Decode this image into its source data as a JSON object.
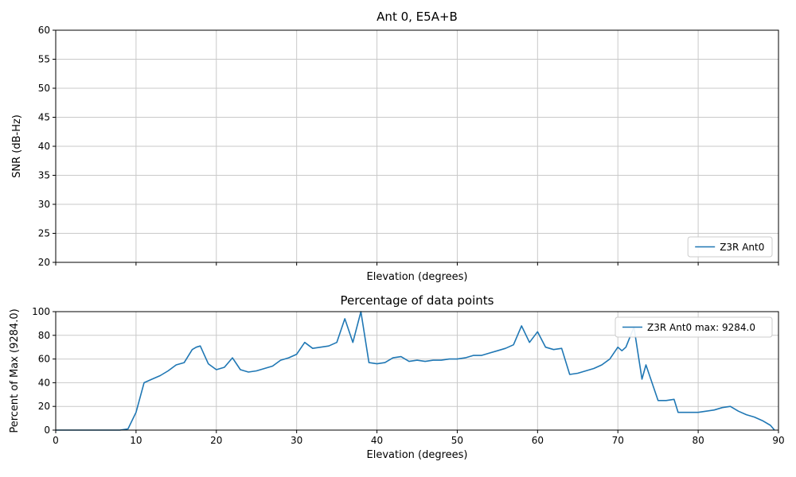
{
  "figure": {
    "background": "#ffffff",
    "text_color": "#000000",
    "grid_color": "#c9c9c9",
    "spine_color": "#000000"
  },
  "chart_data": [
    {
      "type": "line",
      "title": "Ant 0, E5A+B",
      "xlabel": "Elevation (degrees)",
      "ylabel": "SNR (dB-Hz)",
      "xlim": [
        0,
        90
      ],
      "ylim": [
        20,
        60
      ],
      "xtick_step": 10,
      "ytick_step": 5,
      "show_xtick_labels": false,
      "grid": true,
      "legend": {
        "label": "Z3R Ant0",
        "position": "lower right",
        "line_color": "#1f77b4"
      },
      "series": []
    },
    {
      "type": "line",
      "title": "Percentage of data points",
      "xlabel": "Elevation (degrees)",
      "ylabel": "Percent of Max (9284.0)",
      "xlim": [
        0,
        90
      ],
      "ylim": [
        0,
        100
      ],
      "xtick_step": 10,
      "ytick_step": 20,
      "show_xtick_labels": true,
      "grid": true,
      "legend": {
        "label": "Z3R Ant0 max: 9284.0",
        "position": "upper right",
        "line_color": "#1f77b4"
      },
      "series": [
        {
          "name": "Z3R Ant0",
          "color": "#1f77b4",
          "x": [
            0,
            2,
            4,
            6,
            8,
            9,
            10,
            11,
            12,
            13,
            14,
            15,
            16,
            17,
            17.5,
            18,
            19,
            20,
            21,
            22,
            23,
            24,
            25,
            26,
            27,
            28,
            29,
            30,
            31,
            32,
            33,
            34,
            35,
            36,
            37,
            38,
            39,
            40,
            41,
            42,
            43,
            44,
            45,
            46,
            47,
            48,
            49,
            50,
            51,
            52,
            53,
            54,
            55,
            56,
            57,
            58,
            59,
            60,
            61,
            62,
            63,
            64,
            65,
            66,
            67,
            68,
            69,
            70,
            70.5,
            71,
            72,
            73,
            73.5,
            75,
            76,
            77,
            77.5,
            78.5,
            80,
            81,
            82,
            83,
            84,
            85,
            86,
            87,
            88,
            89,
            89.5
          ],
          "y": [
            0,
            0,
            0,
            0,
            0,
            1,
            15,
            40,
            43,
            46,
            50,
            55,
            57,
            68,
            70,
            71,
            56,
            51,
            53,
            61,
            51,
            49,
            50,
            52,
            54,
            59,
            61,
            64,
            74,
            69,
            70,
            71,
            74,
            94,
            74,
            100,
            57,
            56,
            57,
            61,
            62,
            58,
            59,
            58,
            59,
            59,
            60,
            60,
            61,
            63,
            63,
            65,
            67,
            69,
            72,
            88,
            74,
            83,
            70,
            68,
            69,
            47,
            48,
            50,
            52,
            55,
            60,
            70,
            67,
            70,
            87,
            43,
            55,
            25,
            25,
            26,
            15,
            15,
            15,
            16,
            17,
            19,
            20,
            16,
            13,
            11,
            8,
            4,
            0
          ]
        }
      ]
    }
  ]
}
